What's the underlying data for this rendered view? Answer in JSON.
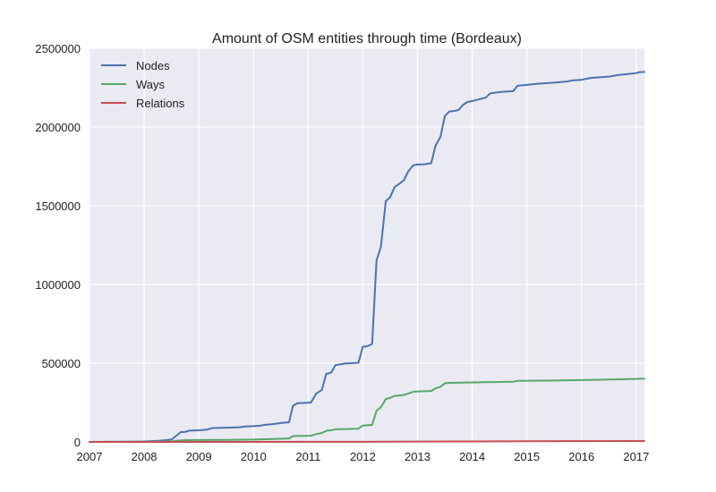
{
  "chart_data": {
    "type": "line",
    "title": "Amount of OSM entities through time (Bordeaux)",
    "xlabel": "",
    "ylabel": "",
    "xlim": [
      2007.0,
      2017.15
    ],
    "ylim": [
      0,
      2500000
    ],
    "x_ticks": [
      "2007",
      "2008",
      "2009",
      "2010",
      "2011",
      "2012",
      "2013",
      "2014",
      "2015",
      "2016",
      "2017"
    ],
    "y_ticks": [
      "0",
      "500000",
      "1000000",
      "1500000",
      "2000000",
      "2500000"
    ],
    "grid": true,
    "legend_position": "top-left",
    "series": [
      {
        "name": "Nodes",
        "color": "#4c72b0",
        "points": [
          [
            2007.0,
            0
          ],
          [
            2007.5,
            1000
          ],
          [
            2008.0,
            3000
          ],
          [
            2008.3,
            8000
          ],
          [
            2008.5,
            15000
          ],
          [
            2008.67,
            62000
          ],
          [
            2008.75,
            64000
          ],
          [
            2008.83,
            72000
          ],
          [
            2009.0,
            74000
          ],
          [
            2009.15,
            78000
          ],
          [
            2009.25,
            88000
          ],
          [
            2009.5,
            90000
          ],
          [
            2009.75,
            93000
          ],
          [
            2009.85,
            98000
          ],
          [
            2010.0,
            100000
          ],
          [
            2010.1,
            102000
          ],
          [
            2010.2,
            108000
          ],
          [
            2010.35,
            113000
          ],
          [
            2010.5,
            120000
          ],
          [
            2010.65,
            125000
          ],
          [
            2010.72,
            228000
          ],
          [
            2010.8,
            246000
          ],
          [
            2010.92,
            248000
          ],
          [
            2011.05,
            250000
          ],
          [
            2011.15,
            308000
          ],
          [
            2011.25,
            330000
          ],
          [
            2011.33,
            432000
          ],
          [
            2011.42,
            440000
          ],
          [
            2011.5,
            488000
          ],
          [
            2011.58,
            492000
          ],
          [
            2011.67,
            498000
          ],
          [
            2011.8,
            500000
          ],
          [
            2011.92,
            503000
          ],
          [
            2012.0,
            605000
          ],
          [
            2012.08,
            607000
          ],
          [
            2012.17,
            622000
          ],
          [
            2012.25,
            1152000
          ],
          [
            2012.33,
            1240000
          ],
          [
            2012.42,
            1530000
          ],
          [
            2012.5,
            1555000
          ],
          [
            2012.58,
            1618000
          ],
          [
            2012.67,
            1640000
          ],
          [
            2012.75,
            1662000
          ],
          [
            2012.83,
            1718000
          ],
          [
            2012.92,
            1757000
          ],
          [
            2013.0,
            1762000
          ],
          [
            2013.1,
            1763000
          ],
          [
            2013.25,
            1770000
          ],
          [
            2013.33,
            1882000
          ],
          [
            2013.42,
            1938000
          ],
          [
            2013.5,
            2070000
          ],
          [
            2013.58,
            2098000
          ],
          [
            2013.67,
            2102000
          ],
          [
            2013.75,
            2108000
          ],
          [
            2013.83,
            2140000
          ],
          [
            2013.92,
            2160000
          ],
          [
            2014.0,
            2165000
          ],
          [
            2014.25,
            2187000
          ],
          [
            2014.33,
            2214000
          ],
          [
            2014.5,
            2222000
          ],
          [
            2014.75,
            2228000
          ],
          [
            2014.83,
            2262000
          ],
          [
            2015.0,
            2268000
          ],
          [
            2015.17,
            2274000
          ],
          [
            2015.5,
            2282000
          ],
          [
            2015.75,
            2290000
          ],
          [
            2015.83,
            2296000
          ],
          [
            2016.0,
            2300000
          ],
          [
            2016.17,
            2312000
          ],
          [
            2016.5,
            2320000
          ],
          [
            2016.67,
            2330000
          ],
          [
            2016.83,
            2336000
          ],
          [
            2017.0,
            2342000
          ],
          [
            2017.05,
            2348000
          ],
          [
            2017.15,
            2350000
          ]
        ]
      },
      {
        "name": "Ways",
        "color": "#55a868",
        "points": [
          [
            2007.0,
            0
          ],
          [
            2008.0,
            1000
          ],
          [
            2008.5,
            3000
          ],
          [
            2008.6,
            8000
          ],
          [
            2008.75,
            11000
          ],
          [
            2009.0,
            12000
          ],
          [
            2009.5,
            13000
          ],
          [
            2010.0,
            15000
          ],
          [
            2010.3,
            18000
          ],
          [
            2010.65,
            22000
          ],
          [
            2010.72,
            37000
          ],
          [
            2010.85,
            38000
          ],
          [
            2011.05,
            39000
          ],
          [
            2011.15,
            50000
          ],
          [
            2011.25,
            57000
          ],
          [
            2011.35,
            72000
          ],
          [
            2011.42,
            74000
          ],
          [
            2011.5,
            80000
          ],
          [
            2011.67,
            82000
          ],
          [
            2011.92,
            84000
          ],
          [
            2012.0,
            104000
          ],
          [
            2012.08,
            106000
          ],
          [
            2012.17,
            108000
          ],
          [
            2012.25,
            198000
          ],
          [
            2012.33,
            220000
          ],
          [
            2012.42,
            272000
          ],
          [
            2012.5,
            280000
          ],
          [
            2012.58,
            292000
          ],
          [
            2012.75,
            298000
          ],
          [
            2012.92,
            318000
          ],
          [
            2013.0,
            320000
          ],
          [
            2013.25,
            323000
          ],
          [
            2013.33,
            340000
          ],
          [
            2013.42,
            350000
          ],
          [
            2013.5,
            372000
          ],
          [
            2013.58,
            375000
          ],
          [
            2014.0,
            378000
          ],
          [
            2014.5,
            381000
          ],
          [
            2014.75,
            382000
          ],
          [
            2014.83,
            388000
          ],
          [
            2015.5,
            390000
          ],
          [
            2016.0,
            393000
          ],
          [
            2016.5,
            396000
          ],
          [
            2017.0,
            400000
          ],
          [
            2017.15,
            402000
          ]
        ]
      },
      {
        "name": "Relations",
        "color": "#c44e52",
        "points": [
          [
            2007.0,
            0
          ],
          [
            2009.0,
            200
          ],
          [
            2011.0,
            500
          ],
          [
            2012.0,
            1000
          ],
          [
            2013.0,
            2000
          ],
          [
            2014.0,
            3000
          ],
          [
            2015.0,
            4000
          ],
          [
            2016.0,
            5000
          ],
          [
            2017.0,
            6000
          ],
          [
            2017.15,
            6000
          ]
        ]
      }
    ]
  }
}
